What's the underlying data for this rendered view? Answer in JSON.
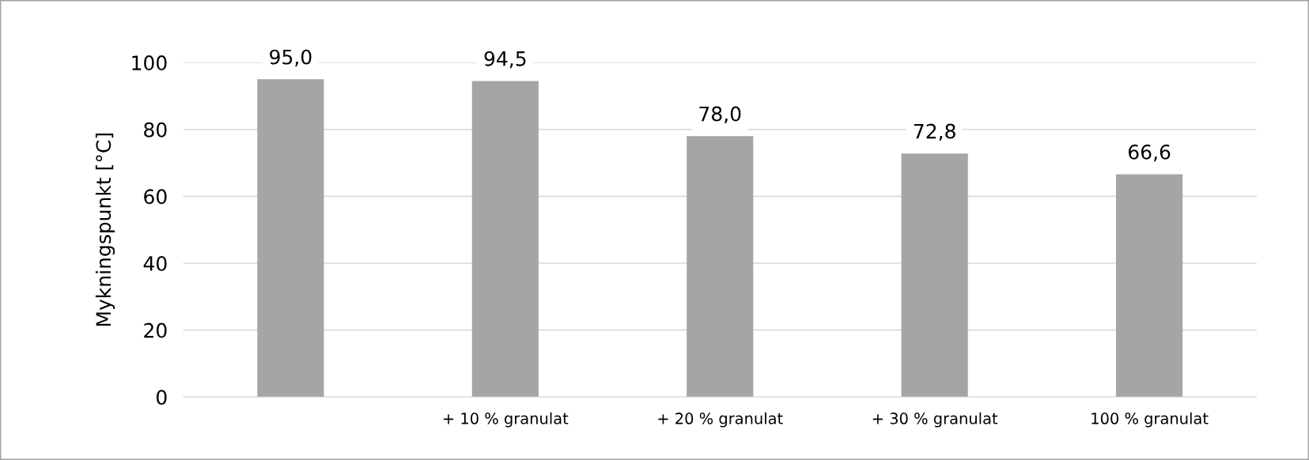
{
  "chart_data": {
    "type": "bar",
    "ylabel": "Mykningspunkt [°C]",
    "categories": [
      null,
      "+ 10 % granulat",
      "+ 20 % granulat",
      "+ 30 % granulat",
      "100 % granulat"
    ],
    "values": [
      95.0,
      94.5,
      78.0,
      72.8,
      66.6
    ],
    "value_labels": [
      "95,0",
      "94,5",
      "78,0",
      "72,8",
      "66,6"
    ],
    "color": "#a5a5a5",
    "ylim": [
      0,
      100
    ],
    "yticks": [
      0,
      20,
      40,
      60,
      80,
      100
    ],
    "grid": "y",
    "legend": false
  }
}
